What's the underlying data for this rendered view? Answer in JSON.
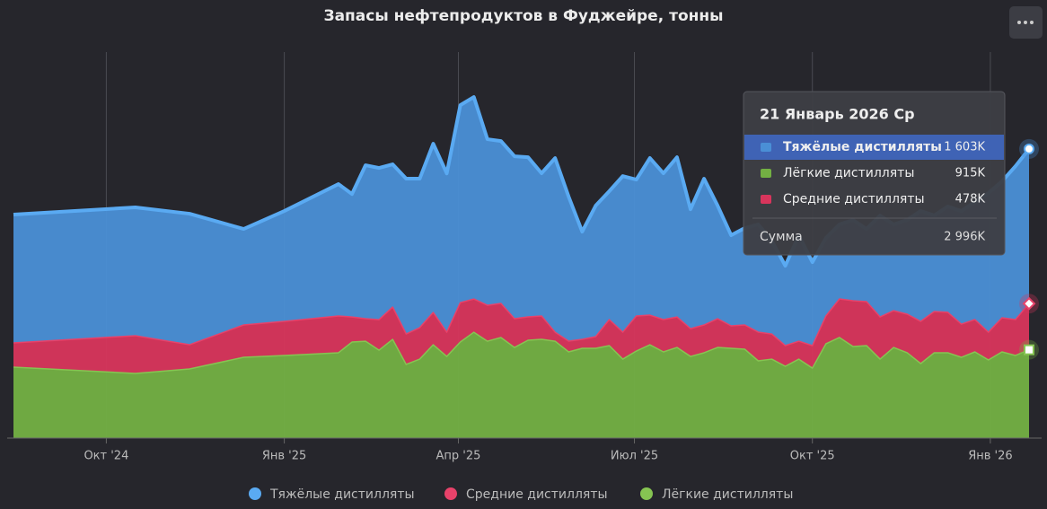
{
  "chart_data": {
    "type": "stacked_area",
    "title": "Запасы нефтепродуктов в Фуджейре, тонны",
    "x": [
      "2024-08-14",
      "2024-10-16",
      "2024-11-13",
      "2024-12-11",
      "2025-01-01",
      "2025-01-29",
      "2025-02-05",
      "2025-02-12",
      "2025-02-19",
      "2025-02-26",
      "2025-03-05",
      "2025-03-12",
      "2025-03-19",
      "2025-03-26",
      "2025-04-02",
      "2025-04-09",
      "2025-04-16",
      "2025-04-23",
      "2025-04-30",
      "2025-05-07",
      "2025-05-14",
      "2025-05-21",
      "2025-05-28",
      "2025-06-04",
      "2025-06-11",
      "2025-06-18",
      "2025-06-25",
      "2025-07-02",
      "2025-07-09",
      "2025-07-16",
      "2025-07-23",
      "2025-07-30",
      "2025-08-06",
      "2025-08-13",
      "2025-08-20",
      "2025-08-27",
      "2025-09-03",
      "2025-09-10",
      "2025-09-17",
      "2025-09-24",
      "2025-10-01",
      "2025-10-08",
      "2025-10-15",
      "2025-10-22",
      "2025-10-29",
      "2025-11-05",
      "2025-11-12",
      "2025-11-19",
      "2025-11-26",
      "2025-12-03",
      "2025-12-10",
      "2025-12-17",
      "2025-12-24",
      "2025-12-31",
      "2026-01-07",
      "2026-01-14",
      "2026-01-21"
    ],
    "series": [
      {
        "name": "Тяжёлые дистилляты",
        "color": "#4a8fd6",
        "line": "#5aaaf2",
        "marker": "circle",
        "values": [
          1330,
          1330,
          1358,
          995,
          1144,
          1367,
          1274,
          1590,
          1572,
          1479,
          1609,
          1544,
          1748,
          1646,
          2046,
          2093,
          1721,
          1683,
          1683,
          1655,
          1479,
          1804,
          1497,
          1116,
          1358,
          1330,
          1618,
          1414,
          1628,
          1516,
          1655,
          1237,
          1516,
          1172,
          939,
          1004,
          1116,
          967,
          828,
          1097,
          865,
          809,
          772,
          837,
          753,
          1051,
          893,
          977,
          1144,
          995,
          1097,
          1172,
          1218,
          1442,
          1414,
          1590,
          1603
        ]
      },
      {
        "name": "Средние дистилляты",
        "color": "#d8355c",
        "line": "#e8426a",
        "marker": "diamond",
        "values": [
          251,
          391,
          251,
          335,
          353,
          381,
          260,
          233,
          316,
          335,
          316,
          326,
          335,
          251,
          409,
          344,
          372,
          353,
          298,
          242,
          242,
          93,
          112,
          93,
          121,
          270,
          279,
          363,
          307,
          335,
          316,
          288,
          288,
          298,
          233,
          251,
          298,
          260,
          214,
          186,
          233,
          288,
          400,
          474,
          456,
          437,
          381,
          400,
          437,
          428,
          419,
          344,
          335,
          288,
          353,
          372,
          478
        ]
      },
      {
        "name": "Лёгкие дистилляты",
        "color": "#73b043",
        "line": "#86c452",
        "marker": "square",
        "values": [
          735,
          670,
          716,
          837,
          856,
          884,
          995,
          1004,
          911,
          1023,
          763,
          818,
          967,
          846,
          995,
          1097,
          1004,
          1042,
          939,
          1014,
          1023,
          1004,
          893,
          930,
          930,
          958,
          818,
          902,
          967,
          893,
          939,
          846,
          884,
          939,
          930,
          921,
          800,
          818,
          744,
          818,
          725,
          977,
          1042,
          949,
          958,
          818,
          939,
          884,
          772,
          884,
          884,
          837,
          893,
          809,
          893,
          856,
          915
        ]
      }
    ],
    "ylim": [
      0,
      4000
    ],
    "xticks": [
      {
        "value": "2024-10-01",
        "label": "Окт '24"
      },
      {
        "value": "2025-01-01",
        "label": "Янв '25"
      },
      {
        "value": "2025-04-01",
        "label": "Апр '25"
      },
      {
        "value": "2025-07-01",
        "label": "Июл '25"
      },
      {
        "value": "2025-10-01",
        "label": "Окт '25"
      },
      {
        "value": "2026-01-01",
        "label": "Янв '26"
      }
    ],
    "grid": true,
    "legend": "bottom",
    "tooltip": {
      "title": "21 Январь 2026 Ср",
      "rows": [
        {
          "name": "Тяжёлые дистилляты",
          "value": 1603,
          "label": "1 603K",
          "color": "#4a8fd6"
        },
        {
          "name": "Лёгкие дистилляты",
          "value": 915,
          "label": "915K",
          "color": "#73b043"
        },
        {
          "name": "Средние дистилляты",
          "value": 478,
          "label": "478K",
          "color": "#d8355c"
        }
      ],
      "total": {
        "name": "Сумма",
        "value": 2996,
        "label": "2 996K"
      }
    }
  }
}
